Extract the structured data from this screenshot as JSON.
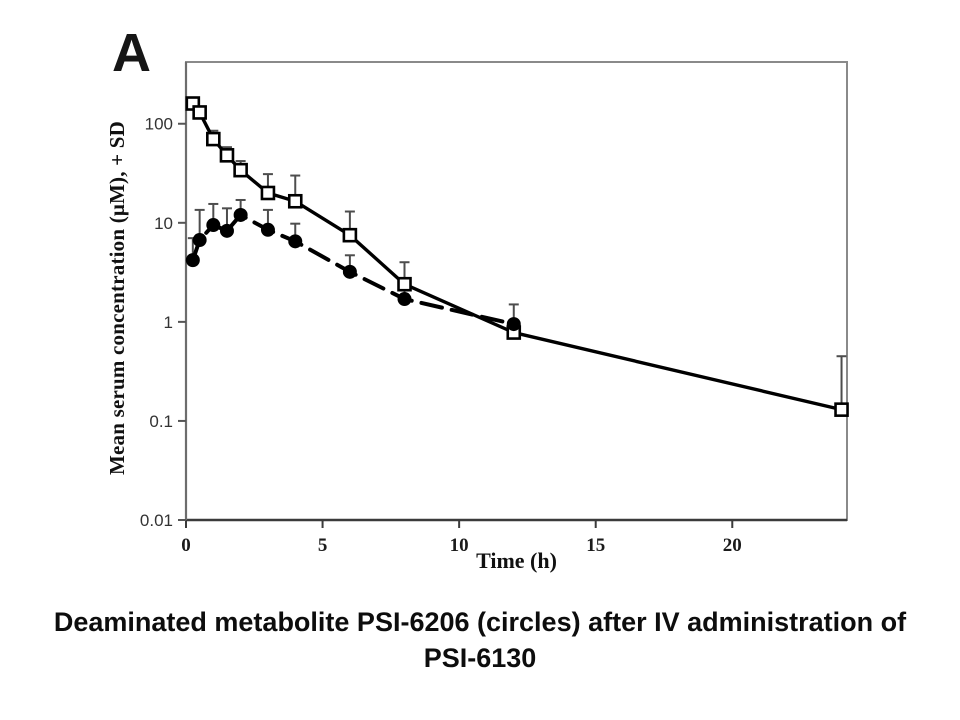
{
  "figure": {
    "panel_label": "A",
    "y_axis_label": "Mean serum concentration (μM), + SD",
    "x_axis_label": "Time (h)"
  },
  "caption": {
    "line1": "Deaminated metabolite PSI-6206 (circles) after IV administration of",
    "line2": "PSI-6130"
  },
  "colors": {
    "series": "#000000",
    "error_bar": "#4d4d4d",
    "plot_border": "#8a8a8a",
    "axis": "#3b3b3b",
    "text": "#111111",
    "background": "#ffffff"
  },
  "chart_data": {
    "type": "line",
    "title": "",
    "xlabel": "Time (h)",
    "ylabel": "Mean serum concentration (μM), + SD",
    "x_axis": {
      "scale": "linear",
      "range": [
        0,
        24.2
      ],
      "ticks": [
        0,
        5,
        10,
        15,
        20
      ],
      "tick_labels": [
        "0",
        "5",
        "10",
        "15",
        "20"
      ]
    },
    "y_axis": {
      "scale": "log",
      "range": [
        0.01,
        420
      ],
      "ticks": [
        100,
        10,
        1,
        0.1,
        0.01
      ],
      "tick_labels": [
        "100",
        "10",
        "1",
        "0.1",
        "0.01"
      ]
    },
    "grid": false,
    "legend": "none (markers identified in caption: circles = PSI-6206)",
    "error_bars": "upper only, + SD",
    "series": [
      {
        "name": "open squares (solid line)",
        "marker": "open-square",
        "line_style": "solid",
        "color": "#000000",
        "x": [
          0.25,
          0.5,
          1,
          1.5,
          2,
          3,
          4,
          6,
          8,
          12,
          24
        ],
        "y": [
          160,
          130,
          70,
          48,
          34,
          20,
          16.5,
          7.5,
          2.4,
          0.78,
          0.13
        ],
        "err_up": [
          null,
          null,
          85,
          58,
          42,
          31,
          30,
          13,
          4,
          null,
          0.45
        ]
      },
      {
        "name": "PSI-6206 filled circles (dashed line)",
        "marker": "filled-circle",
        "line_style": "dashed",
        "color": "#000000",
        "x": [
          0.25,
          0.5,
          1,
          1.5,
          2,
          3,
          4,
          6,
          8,
          12
        ],
        "y": [
          4.2,
          6.7,
          9.5,
          8.3,
          12,
          8.5,
          6.5,
          3.2,
          1.7,
          0.95
        ],
        "err_up": [
          7,
          13.5,
          15.5,
          14,
          17,
          13.5,
          9.8,
          4.7,
          2.6,
          1.5
        ]
      }
    ]
  }
}
